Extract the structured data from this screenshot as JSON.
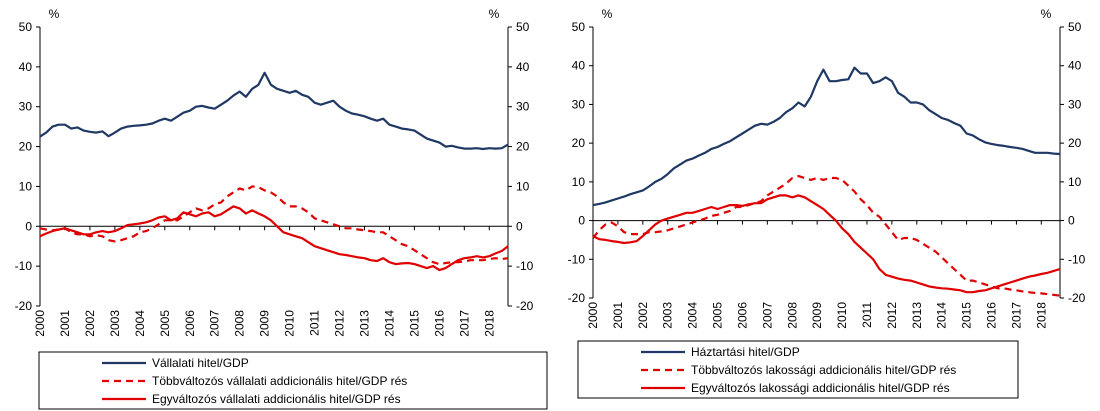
{
  "chart_data": [
    {
      "type": "line",
      "id": "corporate",
      "unit_left": "%",
      "unit_right": "%",
      "ylim": [
        -20,
        50
      ],
      "yticks": [
        -20,
        -10,
        0,
        10,
        20,
        30,
        40,
        50
      ],
      "xlim": [
        2000,
        2018.75
      ],
      "xtick_labels": [
        "2000",
        "2001",
        "2002",
        "2003",
        "2004",
        "2005",
        "2006",
        "2007",
        "2008",
        "2009",
        "2010",
        "2011",
        "2012",
        "2013",
        "2014",
        "2015",
        "2016",
        "2017",
        "2018"
      ],
      "grid": false,
      "legend": [
        "Vállalati hitel/GDP",
        "Többváltozós vállalati addicionális hitel/GDP rés",
        "Egyváltozós vállalati addicionális hitel/GDP rés"
      ],
      "series": [
        {
          "name": "Vállalati hitel/GDP",
          "color": "#1f3864",
          "style": "solid",
          "x": [
            2000,
            2000.25,
            2000.5,
            2000.75,
            2001,
            2001.25,
            2001.5,
            2001.75,
            2002,
            2002.25,
            2002.5,
            2002.75,
            2003,
            2003.25,
            2003.5,
            2003.75,
            2004,
            2004.25,
            2004.5,
            2004.75,
            2005,
            2005.25,
            2005.5,
            2005.75,
            2006,
            2006.25,
            2006.5,
            2006.75,
            2007,
            2007.25,
            2007.5,
            2007.75,
            2008,
            2008.25,
            2008.5,
            2008.75,
            2009,
            2009.25,
            2009.5,
            2009.75,
            2010,
            2010.25,
            2010.5,
            2010.75,
            2011,
            2011.25,
            2011.5,
            2011.75,
            2012,
            2012.25,
            2012.5,
            2012.75,
            2013,
            2013.25,
            2013.5,
            2013.75,
            2014,
            2014.25,
            2014.5,
            2014.75,
            2015,
            2015.25,
            2015.5,
            2015.75,
            2016,
            2016.25,
            2016.5,
            2016.75,
            2017,
            2017.25,
            2017.5,
            2017.75,
            2018,
            2018.25,
            2018.5,
            2018.75
          ],
          "y": [
            22.5,
            23.5,
            25,
            25.5,
            25.5,
            24.5,
            24.8,
            24,
            23.7,
            23.5,
            23.8,
            22.6,
            23.5,
            24.5,
            25,
            25.2,
            25.3,
            25.5,
            25.8,
            26.5,
            27,
            26.5,
            27.5,
            28.5,
            29,
            30,
            30.2,
            29.8,
            29.5,
            30.5,
            31.5,
            32.8,
            33.8,
            32.5,
            34.5,
            35.5,
            38.5,
            35.5,
            34.5,
            34,
            33.5,
            34,
            33,
            32.5,
            31,
            30.5,
            31,
            31.5,
            30,
            29,
            28.3,
            28,
            27.6,
            27,
            26.5,
            27,
            25.5,
            25,
            24.5,
            24.3,
            24,
            23,
            22,
            21.5,
            21,
            20,
            20.2,
            19.8,
            19.5,
            19.5,
            19.6,
            19.4,
            19.6,
            19.5,
            19.6,
            20.5
          ]
        },
        {
          "name": "Többváltozós vállalati addicionális hitel/GDP rés",
          "color": "#e00000",
          "style": "dashed",
          "x": [
            2000,
            2000.25,
            2000.5,
            2000.75,
            2001,
            2001.25,
            2001.5,
            2001.75,
            2002,
            2002.25,
            2002.5,
            2002.75,
            2003,
            2003.25,
            2003.5,
            2003.75,
            2004,
            2004.25,
            2004.5,
            2004.75,
            2005,
            2005.25,
            2005.5,
            2005.75,
            2006,
            2006.25,
            2006.5,
            2006.75,
            2007,
            2007.25,
            2007.5,
            2007.75,
            2008,
            2008.25,
            2008.5,
            2008.75,
            2009,
            2009.25,
            2009.5,
            2009.75,
            2010,
            2010.25,
            2010.5,
            2010.75,
            2011,
            2011.25,
            2011.5,
            2011.75,
            2012,
            2012.25,
            2012.5,
            2012.75,
            2013,
            2013.25,
            2013.5,
            2013.75,
            2014,
            2014.25,
            2014.5,
            2014.75,
            2015,
            2015.25,
            2015.5,
            2015.75,
            2016,
            2016.25,
            2016.5,
            2016.75,
            2017,
            2017.25,
            2017.5,
            2017.75,
            2018,
            2018.25,
            2018.5,
            2018.75
          ],
          "y": [
            -0.5,
            -0.8,
            -1,
            -0.8,
            -0.5,
            -1.5,
            -2,
            -2,
            -2.5,
            -2.2,
            -2.5,
            -3.5,
            -3.8,
            -3.5,
            -3,
            -2.5,
            -1.5,
            -1.2,
            -0.5,
            0.5,
            1.5,
            1.5,
            1.5,
            2.5,
            3.5,
            4.5,
            4,
            4.5,
            5.5,
            6,
            7.5,
            8.5,
            9.5,
            9,
            10,
            9.8,
            9,
            8.5,
            7.5,
            6,
            5,
            5,
            4.5,
            3.5,
            2,
            1.5,
            1,
            0.5,
            0,
            -0.5,
            -0.5,
            -0.8,
            -1,
            -1.2,
            -1.5,
            -1.5,
            -2.5,
            -3.5,
            -4.5,
            -5,
            -6,
            -7,
            -8,
            -9,
            -9.5,
            -9.2,
            -9,
            -9,
            -8.8,
            -8.5,
            -8.5,
            -8.5,
            -8.2,
            -8,
            -8.2,
            -8
          ]
        },
        {
          "name": "Egyváltozós vállalati addicionális hitel/GDP rés",
          "color": "#e00000",
          "style": "solid",
          "x": [
            2000,
            2000.25,
            2000.5,
            2000.75,
            2001,
            2001.25,
            2001.5,
            2001.75,
            2002,
            2002.25,
            2002.5,
            2002.75,
            2003,
            2003.25,
            2003.5,
            2003.75,
            2004,
            2004.25,
            2004.5,
            2004.75,
            2005,
            2005.25,
            2005.5,
            2005.75,
            2006,
            2006.25,
            2006.5,
            2006.75,
            2007,
            2007.25,
            2007.5,
            2007.75,
            2008,
            2008.25,
            2008.5,
            2008.75,
            2009,
            2009.25,
            2009.5,
            2009.75,
            2010,
            2010.25,
            2010.5,
            2010.75,
            2011,
            2011.25,
            2011.5,
            2011.75,
            2012,
            2012.25,
            2012.5,
            2012.75,
            2013,
            2013.25,
            2013.5,
            2013.75,
            2014,
            2014.25,
            2014.5,
            2014.75,
            2015,
            2015.25,
            2015.5,
            2015.75,
            2016,
            2016.25,
            2016.5,
            2016.75,
            2017,
            2017.25,
            2017.5,
            2017.75,
            2018,
            2018.25,
            2018.5,
            2018.75
          ],
          "y": [
            -2.5,
            -1.8,
            -1.2,
            -0.8,
            -0.5,
            -1,
            -1.5,
            -2,
            -2,
            -1.5,
            -1.2,
            -1.5,
            -1.2,
            -0.5,
            0.3,
            0.5,
            0.7,
            1,
            1.5,
            2.2,
            2.5,
            1.5,
            2,
            3.5,
            3,
            2.5,
            3.2,
            3.5,
            2.5,
            3,
            4,
            5,
            4.5,
            3.2,
            4,
            3.2,
            2.5,
            1.5,
            0,
            -1.5,
            -2,
            -2.5,
            -3,
            -4,
            -5,
            -5.5,
            -6,
            -6.5,
            -7,
            -7.2,
            -7.5,
            -7.8,
            -8,
            -8.5,
            -8.7,
            -8,
            -9,
            -9.5,
            -9.3,
            -9.2,
            -9.5,
            -10,
            -10.5,
            -10,
            -11,
            -10.5,
            -9.5,
            -8.5,
            -8,
            -7.8,
            -7.5,
            -7.8,
            -7.5,
            -6.8,
            -6.2,
            -5
          ]
        }
      ]
    },
    {
      "type": "line",
      "id": "household",
      "unit_left": "%",
      "unit_right": "%",
      "ylim": [
        -20,
        50
      ],
      "yticks": [
        -20,
        -10,
        0,
        10,
        20,
        30,
        40,
        50
      ],
      "xlim": [
        2000,
        2018.75
      ],
      "xtick_labels": [
        "2000",
        "2001",
        "2002",
        "2003",
        "2004",
        "2005",
        "2006",
        "2007",
        "2008",
        "2009",
        "2010",
        "2011",
        "2012",
        "2013",
        "2014",
        "2015",
        "2016",
        "2017",
        "2018"
      ],
      "grid": false,
      "legend": [
        "Háztartási hitel/GDP",
        "Többváltozós lakossági addicionális hitel/GDP rés",
        "Egyváltozós lakossági addicionális hitel/GDP rés"
      ],
      "series": [
        {
          "name": "Háztartási hitel/GDP",
          "color": "#1f3864",
          "style": "solid",
          "x": [
            2000,
            2000.25,
            2000.5,
            2000.75,
            2001,
            2001.25,
            2001.5,
            2001.75,
            2002,
            2002.25,
            2002.5,
            2002.75,
            2003,
            2003.25,
            2003.5,
            2003.75,
            2004,
            2004.25,
            2004.5,
            2004.75,
            2005,
            2005.25,
            2005.5,
            2005.75,
            2006,
            2006.25,
            2006.5,
            2006.75,
            2007,
            2007.25,
            2007.5,
            2007.75,
            2008,
            2008.25,
            2008.5,
            2008.75,
            2009,
            2009.25,
            2009.5,
            2009.75,
            2010,
            2010.25,
            2010.5,
            2010.75,
            2011,
            2011.25,
            2011.5,
            2011.75,
            2012,
            2012.25,
            2012.5,
            2012.75,
            2013,
            2013.25,
            2013.5,
            2013.75,
            2014,
            2014.25,
            2014.5,
            2014.75,
            2015,
            2015.25,
            2015.5,
            2015.75,
            2016,
            2016.25,
            2016.5,
            2016.75,
            2017,
            2017.25,
            2017.5,
            2017.75,
            2018,
            2018.25,
            2018.5,
            2018.75
          ],
          "y": [
            4,
            4.3,
            4.7,
            5.2,
            5.7,
            6.2,
            6.8,
            7.3,
            7.8,
            8.8,
            10,
            10.8,
            12,
            13.5,
            14.5,
            15.5,
            16,
            16.8,
            17.5,
            18.5,
            19,
            19.8,
            20.5,
            21.5,
            22.5,
            23.5,
            24.5,
            25,
            24.8,
            25.5,
            26.5,
            28,
            29,
            30.5,
            29.5,
            32,
            36,
            39,
            36,
            36,
            36.3,
            36.5,
            39.5,
            38,
            38,
            35.5,
            36,
            37,
            36,
            33,
            32,
            30.5,
            30.5,
            30,
            28.5,
            27.5,
            26.5,
            26,
            25.2,
            24.5,
            22.5,
            22,
            21,
            20.2,
            19.8,
            19.5,
            19.3,
            19,
            18.8,
            18.5,
            18,
            17.5,
            17.5,
            17.5,
            17.3,
            17.2
          ]
        },
        {
          "name": "Többváltozós lakossági addicionális hitel/GDP rés",
          "color": "#e00000",
          "style": "dashed",
          "x": [
            2000,
            2000.25,
            2000.5,
            2000.75,
            2001,
            2001.25,
            2001.5,
            2001.75,
            2002,
            2002.25,
            2002.5,
            2002.75,
            2003,
            2003.25,
            2003.5,
            2003.75,
            2004,
            2004.25,
            2004.5,
            2004.75,
            2005,
            2005.25,
            2005.5,
            2005.75,
            2006,
            2006.25,
            2006.5,
            2006.75,
            2007,
            2007.25,
            2007.5,
            2007.75,
            2008,
            2008.25,
            2008.5,
            2008.75,
            2009,
            2009.25,
            2009.5,
            2009.75,
            2010,
            2010.25,
            2010.5,
            2010.75,
            2011,
            2011.25,
            2011.5,
            2011.75,
            2012,
            2012.25,
            2012.5,
            2012.75,
            2013,
            2013.25,
            2013.5,
            2013.75,
            2014,
            2014.25,
            2014.5,
            2014.75,
            2015,
            2015.25,
            2015.5,
            2015.75,
            2016,
            2016.25,
            2016.5,
            2016.75,
            2017,
            2017.25,
            2017.5,
            2017.75,
            2018,
            2018.25,
            2018.5,
            2018.75
          ],
          "y": [
            -4.5,
            -2.5,
            -1,
            -0.5,
            -1.5,
            -3,
            -3.5,
            -3.5,
            -3.5,
            -3,
            -3,
            -2.8,
            -2.5,
            -2,
            -1.5,
            -1,
            -0.5,
            0,
            0.5,
            1.2,
            1.5,
            2,
            2.5,
            3.5,
            3.5,
            4,
            4.5,
            5,
            6.5,
            7.5,
            8.5,
            9.5,
            11,
            11.5,
            11,
            10.5,
            11,
            10.5,
            11,
            11,
            10.5,
            9,
            7.5,
            5.5,
            4,
            2,
            1,
            -1,
            -3,
            -5,
            -4.5,
            -4.5,
            -5,
            -6,
            -7,
            -8,
            -9.5,
            -11,
            -12.5,
            -14,
            -15.5,
            -15.5,
            -16,
            -16.5,
            -17,
            -17.5,
            -17.5,
            -17.8,
            -18,
            -18.3,
            -18.5,
            -18.7,
            -18.8,
            -19,
            -19.2,
            -19.4
          ]
        },
        {
          "name": "Egyváltozós lakossági addicionális hitel/GDP rés",
          "color": "#e00000",
          "style": "solid",
          "x": [
            2000,
            2000.25,
            2000.5,
            2000.75,
            2001,
            2001.25,
            2001.5,
            2001.75,
            2002,
            2002.25,
            2002.5,
            2002.75,
            2003,
            2003.25,
            2003.5,
            2003.75,
            2004,
            2004.25,
            2004.5,
            2004.75,
            2005,
            2005.25,
            2005.5,
            2005.75,
            2006,
            2006.25,
            2006.5,
            2006.75,
            2007,
            2007.25,
            2007.5,
            2007.75,
            2008,
            2008.25,
            2008.5,
            2008.75,
            2009,
            2009.25,
            2009.5,
            2009.75,
            2010,
            2010.25,
            2010.5,
            2010.75,
            2011,
            2011.25,
            2011.5,
            2011.75,
            2012,
            2012.25,
            2012.5,
            2012.75,
            2013,
            2013.25,
            2013.5,
            2013.75,
            2014,
            2014.25,
            2014.5,
            2014.75,
            2015,
            2015.25,
            2015.5,
            2015.75,
            2016,
            2016.25,
            2016.5,
            2016.75,
            2017,
            2017.25,
            2017.5,
            2017.75,
            2018,
            2018.25,
            2018.5,
            2018.75
          ],
          "y": [
            -4,
            -4.8,
            -5,
            -5.3,
            -5.5,
            -5.8,
            -5.6,
            -5.3,
            -4,
            -2.5,
            -1,
            0,
            0.5,
            1,
            1.5,
            2,
            2,
            2.5,
            3,
            3.5,
            3,
            3.5,
            4,
            4,
            3.8,
            4.2,
            4.5,
            4.5,
            5.5,
            6,
            6.5,
            6.5,
            6,
            6.5,
            6,
            5,
            4,
            3,
            1.5,
            0,
            -2,
            -3.5,
            -5.5,
            -7,
            -8.5,
            -10,
            -12.5,
            -14,
            -14.5,
            -15,
            -15.3,
            -15.5,
            -16,
            -16.5,
            -17,
            -17.3,
            -17.5,
            -17.6,
            -17.8,
            -18,
            -18.5,
            -18.5,
            -18.2,
            -18,
            -17.5,
            -17,
            -16.5,
            -16,
            -15.5,
            -15,
            -14.5,
            -14.2,
            -13.8,
            -13.5,
            -13,
            -12.5
          ]
        }
      ]
    }
  ]
}
